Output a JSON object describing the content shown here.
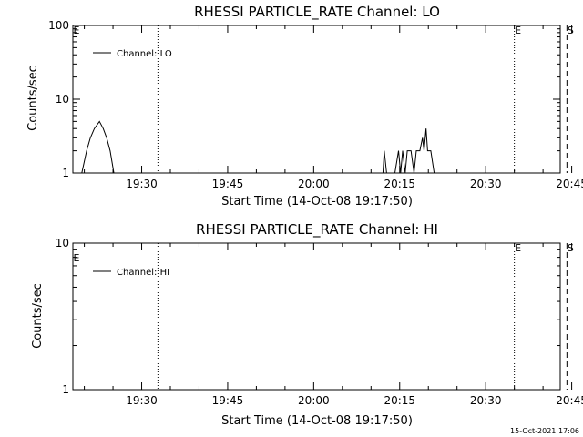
{
  "footer_timestamp": "15-Oct-2021 17:06",
  "chart_data": [
    {
      "type": "line",
      "title": "RHESSI PARTICLE_RATE Channel: LO",
      "xlabel": "Start Time (14-Oct-08 19:17:50)",
      "ylabel": "Counts/sec",
      "yscale": "log",
      "xlim": [
        0,
        5100
      ],
      "ylim": [
        1,
        100
      ],
      "xticks": [
        {
          "v": 720,
          "label": "19:30"
        },
        {
          "v": 1620,
          "label": "19:45"
        },
        {
          "v": 2520,
          "label": "20:00"
        },
        {
          "v": 3420,
          "label": "20:15"
        },
        {
          "v": 4320,
          "label": "20:30"
        },
        {
          "v": 5220,
          "label": "20:45"
        }
      ],
      "yticks": [
        {
          "v": 1,
          "label": "1"
        },
        {
          "v": 10,
          "label": "10"
        },
        {
          "v": 100,
          "label": "100"
        }
      ],
      "legend": {
        "entries": [
          "Channel: LO"
        ],
        "position": "top-left"
      },
      "series": [
        {
          "name": "Channel: LO",
          "segments": [
            [
              [
                3,
                1
              ],
              [
                93,
                1
              ],
              [
                144,
                2
              ],
              [
                183,
                3
              ],
              [
                225,
                4
              ],
              [
                278,
                5
              ],
              [
                317,
                4
              ],
              [
                354,
                3
              ],
              [
                390,
                2
              ],
              [
                429,
                1
              ]
            ],
            [
              [
                3245,
                1
              ],
              [
                3258,
                2
              ],
              [
                3283,
                1
              ],
              [
                3370,
                1
              ],
              [
                3408,
                2
              ],
              [
                3430,
                1
              ],
              [
                3451,
                2
              ],
              [
                3478,
                1
              ],
              [
                3499,
                2
              ],
              [
                3539,
                2
              ],
              [
                3570,
                1
              ],
              [
                3594,
                2
              ],
              [
                3631,
                2
              ],
              [
                3659,
                3
              ],
              [
                3675,
                2
              ],
              [
                3696,
                4
              ],
              [
                3712,
                2
              ],
              [
                3745,
                2
              ],
              [
                3781,
                1
              ],
              [
                3806,
                1
              ]
            ]
          ]
        }
      ],
      "vlines": [
        {
          "x": 890,
          "style": "dotted",
          "label": ""
        },
        {
          "x": 4620,
          "style": "dotted",
          "label": "E"
        },
        {
          "x": 5170,
          "style": "dashed",
          "label": "S"
        },
        {
          "x": 5450,
          "style": "dashdot",
          "label": ""
        }
      ],
      "corner_label": "E"
    },
    {
      "type": "line",
      "title": "RHESSI PARTICLE_RATE Channel: HI",
      "xlabel": "Start Time (14-Oct-08 19:17:50)",
      "ylabel": "Counts/sec",
      "yscale": "log",
      "xlim": [
        0,
        5100
      ],
      "ylim": [
        1,
        10
      ],
      "xticks": [
        {
          "v": 720,
          "label": "19:30"
        },
        {
          "v": 1620,
          "label": "19:45"
        },
        {
          "v": 2520,
          "label": "20:00"
        },
        {
          "v": 3420,
          "label": "20:15"
        },
        {
          "v": 4320,
          "label": "20:30"
        },
        {
          "v": 5220,
          "label": "20:45"
        }
      ],
      "yticks": [
        {
          "v": 1,
          "label": "1"
        },
        {
          "v": 10,
          "label": "10"
        }
      ],
      "legend": {
        "entries": [
          "Channel: HI"
        ],
        "position": "top-left"
      },
      "series": [
        {
          "name": "Channel: HI",
          "segments": []
        }
      ],
      "vlines": [
        {
          "x": 890,
          "style": "dotted",
          "label": ""
        },
        {
          "x": 4620,
          "style": "dotted",
          "label": "E"
        },
        {
          "x": 5170,
          "style": "dashed",
          "label": "S"
        },
        {
          "x": 5450,
          "style": "dashdot",
          "label": ""
        }
      ],
      "corner_label": "E"
    }
  ]
}
